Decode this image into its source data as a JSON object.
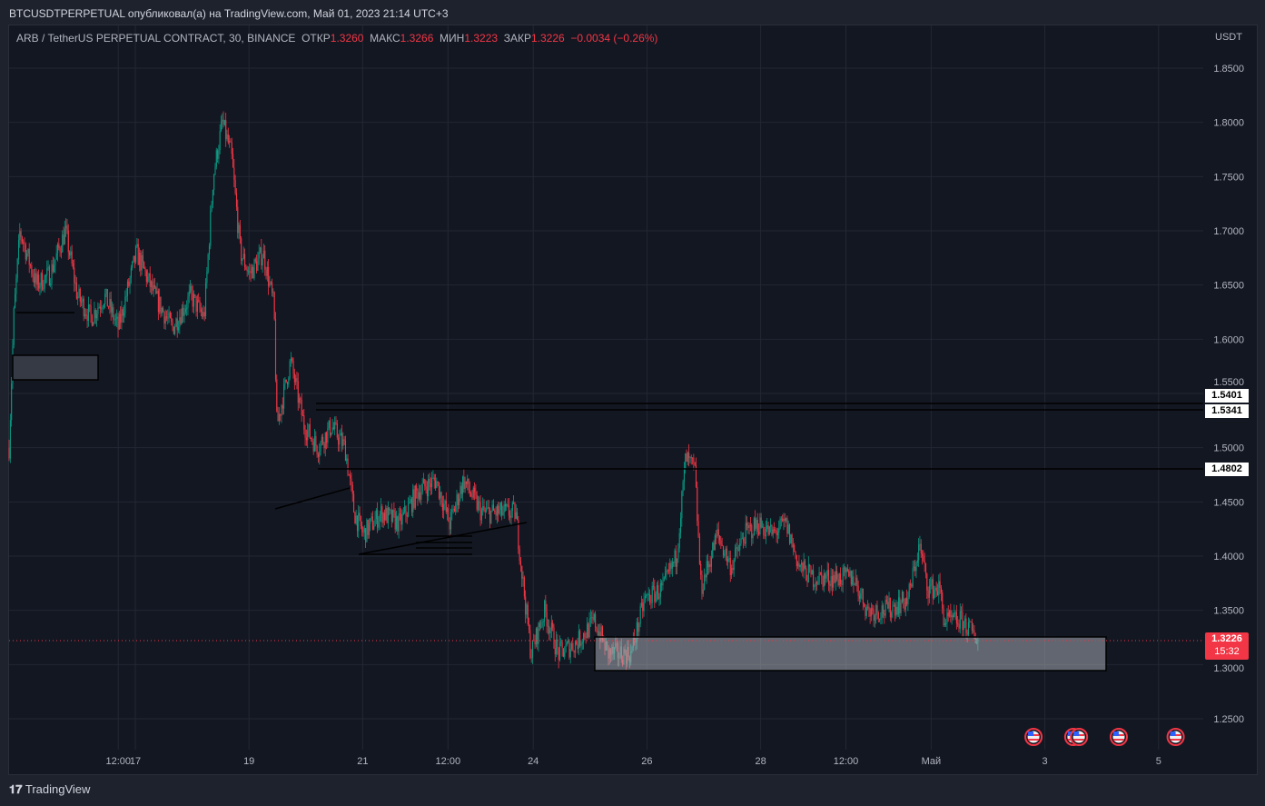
{
  "header": {
    "title": "BTCUSDTPERPETUAL опубликовал(а) на TradingView.com, Май 01, 2023 21:14 UTC+3"
  },
  "legend": {
    "symbol": "ARB / TetherUS PERPETUAL CONTRACT, 30, BINANCE",
    "open_label": "ОТКР",
    "open": "1.3260",
    "high_label": "МАКС",
    "high": "1.3266",
    "low_label": "МИН",
    "low": "1.3223",
    "close_label": "ЗАКР",
    "close": "1.3226",
    "change": "−0.0034 (−0.26%)"
  },
  "price_scale": {
    "currency": "USDT",
    "current_price": "1.3226",
    "countdown": "15:32"
  },
  "levels": [
    "1.5401",
    "1.5341",
    "1.4802"
  ],
  "footer": {
    "brand": "TradingView"
  },
  "colors": {
    "up": "#089981",
    "down": "#f23645",
    "bg": "#131722"
  },
  "chart_data": {
    "type": "candlestick",
    "title": "ARB / TetherUS PERPETUAL CONTRACT, 30, BINANCE",
    "ylim": [
      1.22,
      1.88
    ],
    "y_ticks": [
      "1.8500",
      "1.8000",
      "1.7500",
      "1.7000",
      "1.6500",
      "1.6000",
      "1.5500",
      "1.5000",
      "1.4500",
      "1.4000",
      "1.3500",
      "1.3000",
      "1.2500"
    ],
    "x_ticks": [
      {
        "day": 16.7,
        "label": "12:00"
      },
      {
        "day": 17,
        "label": "17"
      },
      {
        "day": 19,
        "label": "19"
      },
      {
        "day": 21,
        "label": "21"
      },
      {
        "day": 22.5,
        "label": "12:00"
      },
      {
        "day": 24,
        "label": "24"
      },
      {
        "day": 26,
        "label": "26"
      },
      {
        "day": 28,
        "label": "28"
      },
      {
        "day": 29.5,
        "label": "12:00"
      },
      {
        "day": 31,
        "label": "Май"
      },
      {
        "day": 33,
        "label": "3"
      },
      {
        "day": 35,
        "label": "5"
      }
    ],
    "xlim_days": [
      14.77,
      35.8
    ],
    "close_path": [
      [
        14.78,
        1.5
      ],
      [
        14.86,
        1.62
      ],
      [
        14.97,
        1.7
      ],
      [
        15.26,
        1.65
      ],
      [
        15.5,
        1.66
      ],
      [
        15.77,
        1.7
      ],
      [
        15.98,
        1.64
      ],
      [
        16.22,
        1.62
      ],
      [
        16.46,
        1.64
      ],
      [
        16.7,
        1.61
      ],
      [
        17.02,
        1.68
      ],
      [
        17.34,
        1.64
      ],
      [
        17.65,
        1.61
      ],
      [
        17.97,
        1.64
      ],
      [
        18.21,
        1.62
      ],
      [
        18.37,
        1.75
      ],
      [
        18.53,
        1.8
      ],
      [
        18.69,
        1.77
      ],
      [
        18.85,
        1.68
      ],
      [
        19.01,
        1.66
      ],
      [
        19.25,
        1.68
      ],
      [
        19.44,
        1.63
      ],
      [
        19.49,
        1.52
      ],
      [
        19.73,
        1.58
      ],
      [
        19.97,
        1.52
      ],
      [
        20.21,
        1.5
      ],
      [
        20.45,
        1.52
      ],
      [
        20.69,
        1.5
      ],
      [
        20.85,
        1.44
      ],
      [
        21.01,
        1.42
      ],
      [
        21.33,
        1.44
      ],
      [
        21.65,
        1.43
      ],
      [
        21.97,
        1.46
      ],
      [
        22.29,
        1.47
      ],
      [
        22.53,
        1.43
      ],
      [
        22.77,
        1.47
      ],
      [
        23.09,
        1.44
      ],
      [
        23.41,
        1.44
      ],
      [
        23.69,
        1.44
      ],
      [
        23.81,
        1.38
      ],
      [
        23.96,
        1.31
      ],
      [
        24.2,
        1.35
      ],
      [
        24.44,
        1.31
      ],
      [
        24.76,
        1.32
      ],
      [
        25.08,
        1.34
      ],
      [
        25.32,
        1.31
      ],
      [
        25.72,
        1.31
      ],
      [
        25.96,
        1.36
      ],
      [
        26.28,
        1.37
      ],
      [
        26.52,
        1.4
      ],
      [
        26.68,
        1.49
      ],
      [
        26.84,
        1.48
      ],
      [
        26.95,
        1.37
      ],
      [
        27.24,
        1.42
      ],
      [
        27.48,
        1.39
      ],
      [
        27.72,
        1.42
      ],
      [
        27.96,
        1.43
      ],
      [
        28.2,
        1.42
      ],
      [
        28.44,
        1.43
      ],
      [
        28.68,
        1.39
      ],
      [
        28.92,
        1.38
      ],
      [
        29.24,
        1.38
      ],
      [
        29.64,
        1.38
      ],
      [
        29.88,
        1.35
      ],
      [
        30.19,
        1.35
      ],
      [
        30.59,
        1.36
      ],
      [
        30.79,
        1.41
      ],
      [
        30.95,
        1.37
      ],
      [
        31.15,
        1.37
      ],
      [
        31.23,
        1.34
      ],
      [
        31.55,
        1.34
      ],
      [
        31.71,
        1.33
      ],
      [
        31.84,
        1.3226
      ]
    ],
    "event_markers_days": [
      32.8,
      33.5,
      33.6,
      34.3,
      35.3
    ]
  }
}
